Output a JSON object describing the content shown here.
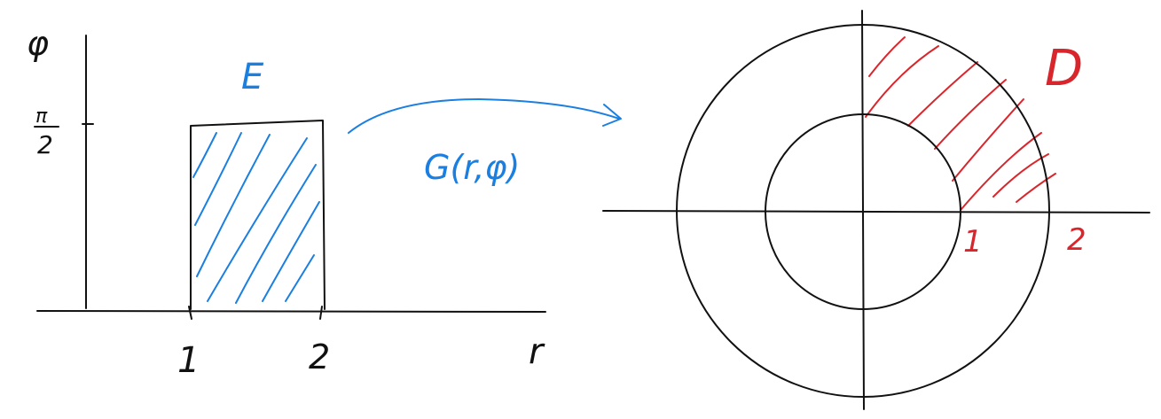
{
  "colors": {
    "ink": "#111111",
    "blue": "#1a7fe0",
    "red": "#d8262c"
  },
  "left_plot": {
    "y_axis_label": "φ",
    "y_tick_numerator": "π",
    "y_tick_denominator": "2",
    "x_axis_label": "r",
    "x_tick_1": "1",
    "x_tick_2": "2",
    "region_label": "E"
  },
  "mapping_label": "G(r,φ)",
  "right_plot": {
    "region_label": "D",
    "tick_1": "1",
    "tick_2": "2"
  }
}
